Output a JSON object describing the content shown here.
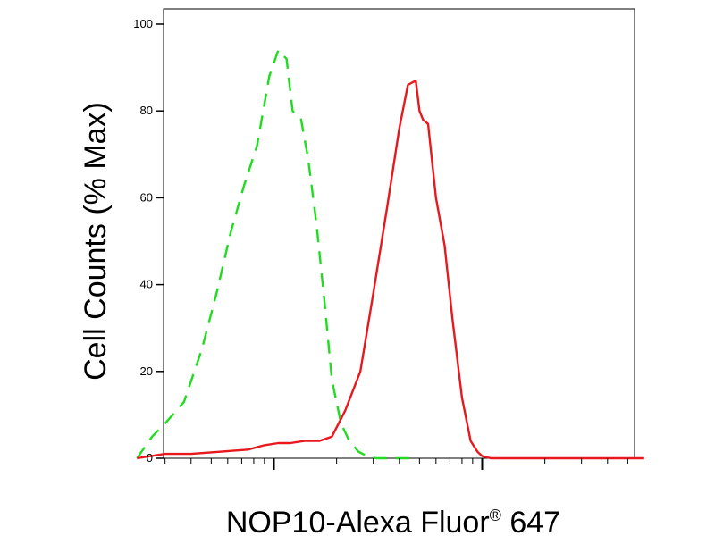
{
  "chart_data": {
    "type": "line",
    "title": "",
    "xlabel": "NOP10-Alexa Fluor",
    "xlabel_superscript": "®",
    "xlabel_suffix": " 647",
    "ylabel": "Cell Counts (% Max)",
    "x_scale": "log",
    "ylim": [
      0,
      100
    ],
    "y_ticks": [
      "0",
      "20",
      "40",
      "60",
      "80",
      "100"
    ],
    "x_tick_labels_shown": false,
    "grid": false,
    "legend": "none",
    "series": [
      {
        "color": "#1fdc1f",
        "line_style": "dashed",
        "x": [
          2.2,
          2.6,
          3.0,
          3.7,
          4.5,
          5.3,
          6.2,
          7.2,
          8.3,
          9.5,
          10.5,
          11.5,
          12.3,
          13.5,
          14.6,
          16,
          17.5,
          19,
          21,
          23,
          25.5,
          28,
          31,
          35,
          40,
          46
        ],
        "y": [
          0,
          5,
          8,
          13,
          25,
          38,
          52,
          63,
          72,
          88,
          94,
          92,
          80,
          78,
          69,
          54,
          36,
          18,
          8,
          4,
          1.5,
          0.5,
          0,
          0,
          0,
          0
        ]
      },
      {
        "color": "#e8181c",
        "line_style": "solid",
        "x": [
          2.2,
          3.0,
          4.0,
          5.5,
          7.5,
          9.0,
          10.5,
          12,
          14,
          16.5,
          19,
          22,
          26,
          30,
          35,
          40,
          44,
          48,
          50,
          52,
          55,
          60,
          66,
          72,
          80,
          88,
          95,
          100,
          110,
          150,
          300,
          600
        ],
        "y": [
          0,
          1,
          1,
          1.5,
          2,
          3,
          3.5,
          3.5,
          4,
          4,
          5,
          11,
          20,
          38,
          58,
          76,
          86,
          87,
          80,
          78,
          77,
          60,
          49,
          32,
          14,
          4,
          1.5,
          0.5,
          0,
          0,
          0,
          0
        ]
      }
    ]
  }
}
